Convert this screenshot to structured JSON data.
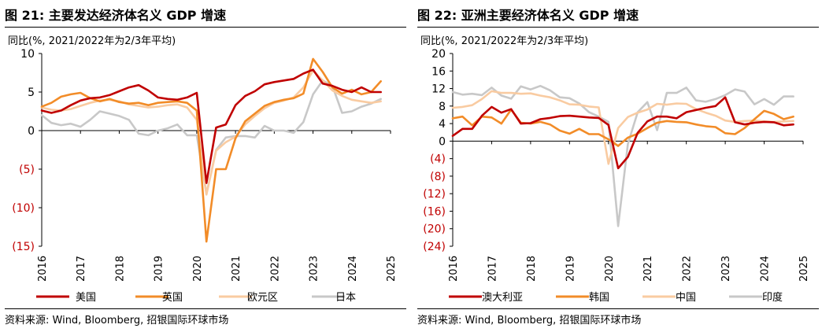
{
  "left": {
    "title": "图 21: 主要发达经济体名义 GDP 增速",
    "unit": "同比(%, 2021/2022年为2/3年平均)",
    "source": "资料来源: Wind, Bloomberg, 招银国际环球市场"
  },
  "right": {
    "title": "图 22: 亚洲主要经济体名义 GDP 增速",
    "unit": "同比(%, 2021/2022年为2/3年平均)",
    "source": "资料来源: Wind, Bloomberg, 招银国际环球市场"
  },
  "chart_data": [
    {
      "type": "line",
      "title": "图 21: 主要发达经济体名义 GDP 增速",
      "ylabel": "同比(%, 2021/2022年为2/3年平均)",
      "ylim": [
        -15,
        10
      ],
      "yticks": [
        10,
        5,
        0,
        -5,
        -10,
        -15
      ],
      "ytick_labels": [
        "10",
        "5",
        "0",
        "(5)",
        "(10)",
        "(15)"
      ],
      "xlim": [
        2016,
        2025
      ],
      "xticks": [
        "2016",
        "2017",
        "2018",
        "2019",
        "2020",
        "2021",
        "2022",
        "2023",
        "2024",
        "2025"
      ],
      "legend_position": "bottom",
      "grid": false,
      "series": [
        {
          "name": "美国",
          "color": "#c00000",
          "x": [
            2016.0,
            2016.25,
            2016.5,
            2016.75,
            2017.0,
            2017.25,
            2017.5,
            2017.75,
            2018.0,
            2018.25,
            2018.5,
            2018.75,
            2019.0,
            2019.25,
            2019.5,
            2019.75,
            2020.0,
            2020.25,
            2020.5,
            2020.75,
            2021.0,
            2021.25,
            2021.5,
            2021.75,
            2022.0,
            2022.25,
            2022.5,
            2022.75,
            2023.0,
            2023.25,
            2023.5,
            2023.75,
            2024.0,
            2024.25,
            2024.5,
            2024.75
          ],
          "y": [
            2.6,
            2.3,
            2.6,
            3.3,
            3.9,
            4.2,
            4.3,
            4.6,
            5.1,
            5.6,
            5.9,
            5.2,
            4.3,
            4.1,
            4.0,
            4.3,
            4.9,
            -6.8,
            0.4,
            0.8,
            3.3,
            4.5,
            5.1,
            6.0,
            6.3,
            6.5,
            6.7,
            7.4,
            7.9,
            6.1,
            5.8,
            5.3,
            5.0,
            5.6,
            5.0,
            5.0
          ]
        },
        {
          "name": "英国",
          "color": "#f28c28",
          "x": [
            2016.0,
            2016.25,
            2016.5,
            2016.75,
            2017.0,
            2017.25,
            2017.5,
            2017.75,
            2018.0,
            2018.25,
            2018.5,
            2018.75,
            2019.0,
            2019.25,
            2019.5,
            2019.75,
            2020.0,
            2020.25,
            2020.5,
            2020.75,
            2021.0,
            2021.25,
            2021.5,
            2021.75,
            2022.0,
            2022.25,
            2022.5,
            2022.75,
            2023.0,
            2023.25,
            2023.5,
            2023.75,
            2024.0,
            2024.25,
            2024.5,
            2024.75
          ],
          "y": [
            3.1,
            3.6,
            4.4,
            4.7,
            4.9,
            4.2,
            3.8,
            4.1,
            3.7,
            3.5,
            3.6,
            3.3,
            3.6,
            3.7,
            3.8,
            3.6,
            2.6,
            -14.4,
            -5.0,
            -5.0,
            -1.0,
            1.2,
            2.2,
            3.2,
            3.7,
            4.0,
            4.2,
            4.8,
            9.3,
            7.6,
            5.6,
            4.8,
            5.3,
            4.7,
            5.0,
            6.4
          ]
        },
        {
          "name": "欧元区",
          "color": "#f9cba1",
          "x": [
            2016.0,
            2016.25,
            2016.5,
            2016.75,
            2017.0,
            2017.25,
            2017.5,
            2017.75,
            2018.0,
            2018.25,
            2018.5,
            2018.75,
            2019.0,
            2019.25,
            2019.5,
            2019.75,
            2020.0,
            2020.25,
            2020.5,
            2020.75,
            2021.0,
            2021.25,
            2021.5,
            2021.75,
            2022.0,
            2022.25,
            2022.5,
            2022.75,
            2023.0,
            2023.25,
            2023.5,
            2023.75,
            2024.0,
            2024.25,
            2024.5,
            2024.75
          ],
          "y": [
            3.0,
            2.7,
            2.6,
            2.8,
            3.2,
            3.6,
            3.9,
            4.0,
            3.8,
            3.4,
            3.2,
            3.0,
            3.1,
            3.3,
            3.4,
            3.0,
            1.4,
            -8.3,
            -2.6,
            -1.5,
            -0.8,
            0.8,
            1.9,
            2.9,
            3.6,
            3.9,
            4.3,
            5.6,
            7.8,
            6.5,
            5.2,
            4.5,
            4.0,
            3.8,
            3.6,
            3.8
          ]
        },
        {
          "name": "日本",
          "color": "#c8c8c8",
          "x": [
            2016.0,
            2016.25,
            2016.5,
            2016.75,
            2017.0,
            2017.25,
            2017.5,
            2017.75,
            2018.0,
            2018.25,
            2018.5,
            2018.75,
            2019.0,
            2019.25,
            2019.5,
            2019.75,
            2020.0,
            2020.25,
            2020.5,
            2020.75,
            2021.0,
            2021.25,
            2021.5,
            2021.75,
            2022.0,
            2022.25,
            2022.5,
            2022.75,
            2023.0,
            2023.25,
            2023.5,
            2023.75,
            2024.0,
            2024.25,
            2024.5,
            2024.75
          ],
          "y": [
            2.0,
            1.0,
            0.7,
            0.9,
            0.5,
            1.4,
            2.5,
            2.2,
            1.9,
            1.4,
            -0.4,
            -0.6,
            0.0,
            0.3,
            0.8,
            -0.6,
            -0.6,
            -8.2,
            -2.5,
            -0.9,
            -0.7,
            -0.7,
            -0.9,
            0.6,
            0.0,
            0.0,
            -0.3,
            1.1,
            4.7,
            6.5,
            5.8,
            2.3,
            2.5,
            3.1,
            3.5,
            4.1
          ]
        }
      ]
    },
    {
      "type": "line",
      "title": "图 22: 亚洲主要经济体名义 GDP 增速",
      "ylabel": "同比(%, 2021/2022年为2/3年平均)",
      "ylim": [
        -24,
        20
      ],
      "yticks": [
        20,
        16,
        12,
        8,
        4,
        0,
        -4,
        -8,
        -12,
        -16,
        -20,
        -24
      ],
      "ytick_labels": [
        "20",
        "16",
        "12",
        "8",
        "4",
        "0",
        "(4)",
        "(8)",
        "(12)",
        "(16)",
        "(20)",
        "(24)"
      ],
      "xlim": [
        2016,
        2025
      ],
      "xticks": [
        "2016",
        "2017",
        "2018",
        "2019",
        "2020",
        "2021",
        "2022",
        "2023",
        "2024",
        "2025"
      ],
      "legend_position": "bottom",
      "grid": false,
      "series": [
        {
          "name": "澳大利亚",
          "color": "#c00000",
          "x": [
            2016.0,
            2016.25,
            2016.5,
            2016.75,
            2017.0,
            2017.25,
            2017.5,
            2017.75,
            2018.0,
            2018.25,
            2018.5,
            2018.75,
            2019.0,
            2019.25,
            2019.5,
            2019.75,
            2020.0,
            2020.25,
            2020.5,
            2020.75,
            2021.0,
            2021.25,
            2021.5,
            2021.75,
            2022.0,
            2022.25,
            2022.5,
            2022.75,
            2023.0,
            2023.25,
            2023.5,
            2023.75,
            2024.0,
            2024.25,
            2024.5,
            2024.75
          ],
          "y": [
            1.2,
            2.8,
            2.8,
            5.8,
            7.8,
            6.5,
            7.3,
            4.0,
            4.1,
            5.0,
            5.3,
            5.7,
            5.8,
            5.6,
            5.4,
            5.3,
            3.7,
            -6.2,
            -3.6,
            1.9,
            4.5,
            5.6,
            5.6,
            5.2,
            6.6,
            7.1,
            7.6,
            8.0,
            10.0,
            4.3,
            3.8,
            4.2,
            4.4,
            4.3,
            3.6,
            3.8
          ]
        },
        {
          "name": "韩国",
          "color": "#f28c28",
          "x": [
            2016.0,
            2016.25,
            2016.5,
            2016.75,
            2017.0,
            2017.25,
            2017.5,
            2017.75,
            2018.0,
            2018.25,
            2018.5,
            2018.75,
            2019.0,
            2019.25,
            2019.5,
            2019.75,
            2020.0,
            2020.25,
            2020.5,
            2020.75,
            2021.0,
            2021.25,
            2021.5,
            2021.75,
            2022.0,
            2022.25,
            2022.5,
            2022.75,
            2023.0,
            2023.25,
            2023.5,
            2023.75,
            2024.0,
            2024.25,
            2024.5,
            2024.75
          ],
          "y": [
            5.2,
            5.6,
            3.6,
            5.6,
            5.4,
            4.0,
            7.2,
            4.2,
            4.0,
            4.4,
            3.8,
            2.4,
            1.7,
            2.8,
            1.6,
            1.6,
            0.4,
            -1.1,
            0.8,
            1.7,
            3.0,
            4.2,
            4.6,
            4.4,
            4.3,
            3.8,
            3.4,
            3.2,
            1.8,
            1.6,
            3.0,
            5.0,
            6.9,
            6.2,
            5.0,
            5.6
          ]
        },
        {
          "name": "中国",
          "color": "#f9cba1",
          "x": [
            2016.0,
            2016.25,
            2016.5,
            2016.75,
            2017.0,
            2017.25,
            2017.5,
            2017.75,
            2018.0,
            2018.25,
            2018.5,
            2018.75,
            2019.0,
            2019.25,
            2019.5,
            2019.75,
            2020.0,
            2020.25,
            2020.5,
            2020.75,
            2021.0,
            2021.25,
            2021.5,
            2021.75,
            2022.0,
            2022.25,
            2022.5,
            2022.75,
            2023.0,
            2023.25,
            2023.5,
            2023.75,
            2024.0,
            2024.25,
            2024.5,
            2024.75
          ],
          "y": [
            7.6,
            7.8,
            8.2,
            9.6,
            11.4,
            11.0,
            11.0,
            10.8,
            10.9,
            10.4,
            10.0,
            9.3,
            8.4,
            8.3,
            7.9,
            7.7,
            -5.2,
            3.0,
            5.5,
            6.5,
            7.2,
            8.5,
            8.3,
            8.6,
            8.5,
            7.3,
            6.5,
            5.8,
            4.7,
            4.4,
            4.6,
            4.7,
            4.5,
            4.4,
            4.5,
            4.6
          ]
        },
        {
          "name": "印度",
          "color": "#c8c8c8",
          "x": [
            2016.0,
            2016.25,
            2016.5,
            2016.75,
            2017.0,
            2017.25,
            2017.5,
            2017.75,
            2018.0,
            2018.25,
            2018.5,
            2018.75,
            2019.0,
            2019.25,
            2019.5,
            2019.75,
            2020.0,
            2020.25,
            2020.5,
            2020.75,
            2021.0,
            2021.25,
            2021.5,
            2021.75,
            2022.0,
            2022.25,
            2022.5,
            2022.75,
            2023.0,
            2023.25,
            2023.5,
            2023.75,
            2024.0,
            2024.25,
            2024.5,
            2024.75
          ],
          "y": [
            11.2,
            10.6,
            10.8,
            10.5,
            12.2,
            10.4,
            9.7,
            12.5,
            11.8,
            12.6,
            11.6,
            10.0,
            9.8,
            8.6,
            6.6,
            5.6,
            4.4,
            -19.4,
            -0.6,
            6.6,
            8.9,
            2.5,
            11.0,
            11.0,
            12.2,
            9.3,
            9.0,
            9.6,
            10.5,
            11.8,
            11.3,
            8.4,
            9.6,
            8.3,
            10.2,
            10.2
          ]
        }
      ]
    }
  ]
}
